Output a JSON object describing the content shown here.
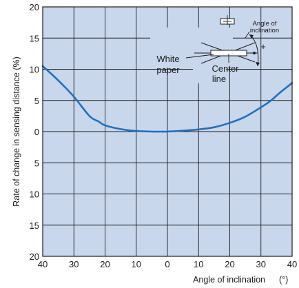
{
  "chart_data": {
    "type": "line",
    "xlabel": "Angle of inclination",
    "xunit": "(°)",
    "ylabel": "Rate of change in sensing distance (%)",
    "x_tick_labels": [
      "40",
      "30",
      "20",
      "10",
      "0",
      "10",
      "20",
      "30",
      "40"
    ],
    "y_tick_labels": [
      "20",
      "15",
      "10",
      "5",
      "0",
      "5",
      "10",
      "15",
      "20"
    ],
    "xlim": [
      -40,
      40
    ],
    "ylim": [
      -20,
      20
    ],
    "grid": true,
    "series": [
      {
        "x": [
          -40,
          -35,
          -30,
          -25,
          -22,
          -20,
          -15,
          -10,
          -5,
          -2,
          0,
          5,
          10,
          15,
          20,
          25,
          30,
          33,
          36,
          40
        ],
        "y": [
          10.5,
          8.2,
          5.6,
          2.5,
          1.6,
          1.0,
          0.4,
          0.1,
          0.0,
          0.0,
          0.0,
          0.15,
          0.35,
          0.7,
          1.4,
          2.4,
          3.9,
          4.9,
          6.2,
          7.8
        ]
      }
    ],
    "colors": {
      "background": "#c9d7ec",
      "line": "#1f6fc0",
      "grid": "#1a1a1a"
    },
    "inset": {
      "angle_label_line1": "Angle of",
      "angle_label_line2": "inclination",
      "plus_sign": "+",
      "white_paper_line1": "White",
      "white_paper_line2": "paper",
      "center_line_line1": "Center",
      "center_line_line2": "line"
    }
  }
}
